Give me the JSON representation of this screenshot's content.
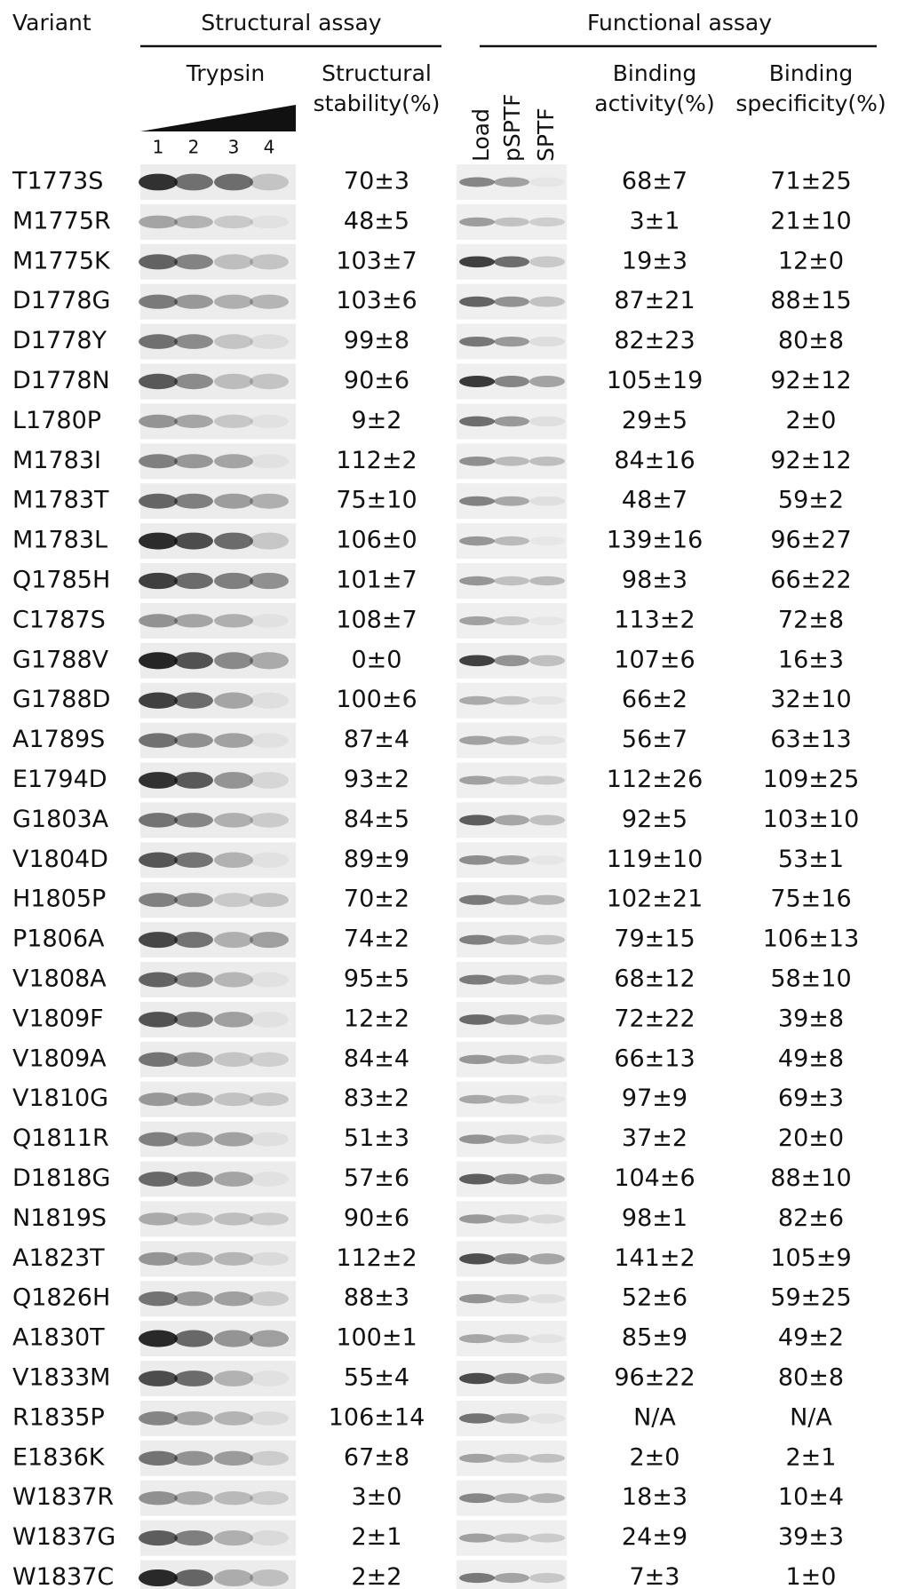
{
  "header": {
    "variant": "Variant",
    "structural_assay": "Structural assay",
    "functional_assay": "Functional assay",
    "trypsin": "Trypsin",
    "lanes": [
      "1",
      "2",
      "3",
      "4"
    ],
    "structural_stability": [
      "Structural",
      "stability(%)"
    ],
    "functional_lanes": [
      "Load",
      "pSPTF",
      "SPTF"
    ],
    "binding_activity": [
      "Binding",
      "activity(%)"
    ],
    "binding_specificity": [
      "Binding",
      "specificity(%)"
    ]
  },
  "table": {
    "rows": [
      [
        "T1773S",
        "70±3",
        "68±7",
        "71±25"
      ],
      [
        "M1775R",
        "48±5",
        "3±1",
        "21±10"
      ],
      [
        "M1775K",
        "103±7",
        "19±3",
        "12±0"
      ],
      [
        "D1778G",
        "103±6",
        "87±21",
        "88±15"
      ],
      [
        "D1778Y",
        "99±8",
        "82±23",
        "80±8"
      ],
      [
        "D1778N",
        "90±6",
        "105±19",
        "92±12"
      ],
      [
        "L1780P",
        "9±2",
        "29±5",
        "2±0"
      ],
      [
        "M1783I",
        "112±2",
        "84±16",
        "92±12"
      ],
      [
        "M1783T",
        "75±10",
        "48±7",
        "59±2"
      ],
      [
        "M1783L",
        "106±0",
        "139±16",
        "96±27"
      ],
      [
        "Q1785H",
        "101±7",
        "98±3",
        "66±22"
      ],
      [
        "C1787S",
        "108±7",
        "113±2",
        "72±8"
      ],
      [
        "G1788V",
        "0±0",
        "107±6",
        "16±3"
      ],
      [
        "G1788D",
        "100±6",
        "66±2",
        "32±10"
      ],
      [
        "A1789S",
        "87±4",
        "56±7",
        "63±13"
      ],
      [
        "E1794D",
        "93±2",
        "112±26",
        "109±25"
      ],
      [
        "G1803A",
        "84±5",
        "92±5",
        "103±10"
      ],
      [
        "V1804D",
        "89±9",
        "119±10",
        "53±1"
      ],
      [
        "H1805P",
        "70±2",
        "102±21",
        "75±16"
      ],
      [
        "P1806A",
        "74±2",
        "79±15",
        "106±13"
      ],
      [
        "V1808A",
        "95±5",
        "68±12",
        "58±10"
      ],
      [
        "V1809F",
        "12±2",
        "72±22",
        "39±8"
      ],
      [
        "V1809A",
        "84±4",
        "66±13",
        "49±8"
      ],
      [
        "V1810G",
        "83±2",
        "97±9",
        "69±3"
      ],
      [
        "Q1811R",
        "51±3",
        "37±2",
        "20±0"
      ],
      [
        "D1818G",
        "57±6",
        "104±6",
        "88±10"
      ],
      [
        "N1819S",
        "90±6",
        "98±1",
        "82±6"
      ],
      [
        "A1823T",
        "112±2",
        "141±2",
        "105±9"
      ],
      [
        "Q1826H",
        "88±3",
        "52±6",
        "59±25"
      ],
      [
        "A1830T",
        "100±1",
        "85±9",
        "49±2"
      ],
      [
        "V1833M",
        "55±4",
        "96±22",
        "80±8"
      ],
      [
        "R1835P",
        "106±14",
        "N/A",
        "N/A"
      ],
      [
        "E1836K",
        "67±8",
        "2±0",
        "2±1"
      ],
      [
        "W1837R",
        "3±0",
        "18±3",
        "10±4"
      ],
      [
        "W1837G",
        "2±1",
        "24±9",
        "39±3"
      ],
      [
        "W1837C",
        "2±2",
        "7±3",
        "1±0"
      ]
    ]
  }
}
